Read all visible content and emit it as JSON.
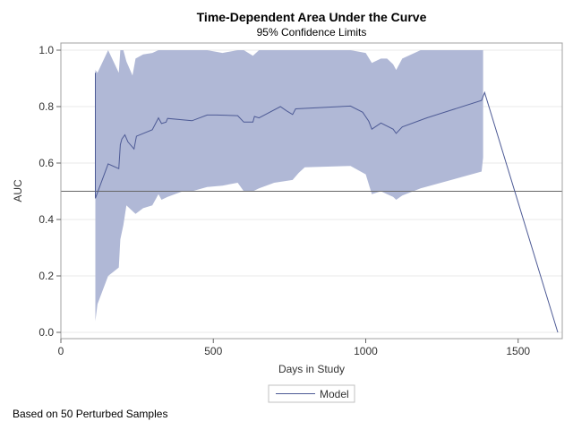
{
  "chart_data": {
    "type": "line",
    "title": "Time-Dependent Area Under the Curve",
    "subtitle": "95% Confidence Limits",
    "xlabel": "Days in Study",
    "ylabel": "AUC",
    "xlim": [
      0,
      1650
    ],
    "ylim": [
      0,
      1.0
    ],
    "xticks": [
      0,
      500,
      1000,
      1500
    ],
    "xtick_labels": [
      "0",
      "500",
      "1000",
      "1500"
    ],
    "yticks": [
      0.0,
      0.2,
      0.4,
      0.6,
      0.8,
      1.0
    ],
    "ytick_labels": [
      "0.0",
      "0.2",
      "0.4",
      "0.6",
      "0.8",
      "1.0"
    ],
    "grid": true,
    "reference_line": 0.5,
    "legend_position": "bottom",
    "colors": {
      "line": "#4d5a95",
      "band": "#b0b8d6",
      "reference": "#666666",
      "grid": "#e8e8e8"
    },
    "series": [
      {
        "name": "Model",
        "x": [
          113,
          113,
          155,
          190,
          195,
          200,
          210,
          220,
          240,
          248,
          300,
          320,
          330,
          345,
          350,
          430,
          480,
          510,
          580,
          600,
          630,
          635,
          650,
          720,
          740,
          760,
          770,
          950,
          990,
          1010,
          1020,
          1050,
          1090,
          1100,
          1120,
          1200,
          1380,
          1390,
          1630
        ],
        "y": [
          0.92,
          0.475,
          0.597,
          0.58,
          0.665,
          0.685,
          0.7,
          0.675,
          0.65,
          0.695,
          0.718,
          0.76,
          0.74,
          0.745,
          0.758,
          0.75,
          0.77,
          0.77,
          0.768,
          0.745,
          0.745,
          0.765,
          0.76,
          0.8,
          0.785,
          0.772,
          0.792,
          0.802,
          0.78,
          0.748,
          0.72,
          0.742,
          0.72,
          0.705,
          0.728,
          0.76,
          0.822,
          0.85,
          0.0
        ]
      }
    ],
    "confidence_band": {
      "x": [
        113,
        120,
        155,
        190,
        195,
        205,
        215,
        235,
        245,
        270,
        300,
        320,
        330,
        350,
        400,
        430,
        480,
        530,
        580,
        600,
        630,
        650,
        700,
        760,
        780,
        800,
        950,
        1000,
        1020,
        1050,
        1070,
        1090,
        1100,
        1120,
        1180,
        1380,
        1385
      ],
      "upper": [
        0.93,
        0.92,
        1.0,
        0.92,
        1.0,
        1.0,
        0.96,
        0.91,
        0.97,
        0.985,
        0.99,
        1.0,
        1.0,
        1.0,
        1.0,
        1.0,
        1.0,
        0.99,
        1.0,
        1.0,
        0.98,
        1.0,
        1.0,
        1.0,
        1.0,
        1.0,
        1.0,
        0.99,
        0.955,
        0.97,
        0.97,
        0.95,
        0.93,
        0.97,
        1.0,
        1.0,
        1.0
      ],
      "lower": [
        0.04,
        0.1,
        0.2,
        0.23,
        0.33,
        0.38,
        0.45,
        0.43,
        0.42,
        0.44,
        0.45,
        0.49,
        0.47,
        0.48,
        0.5,
        0.5,
        0.515,
        0.52,
        0.53,
        0.5,
        0.5,
        0.51,
        0.53,
        0.54,
        0.565,
        0.585,
        0.59,
        0.56,
        0.49,
        0.5,
        0.49,
        0.48,
        0.47,
        0.485,
        0.51,
        0.57,
        0.62
      ]
    }
  },
  "legend": {
    "label": "Model"
  },
  "footnote": "Based on 50 Perturbed Samples"
}
